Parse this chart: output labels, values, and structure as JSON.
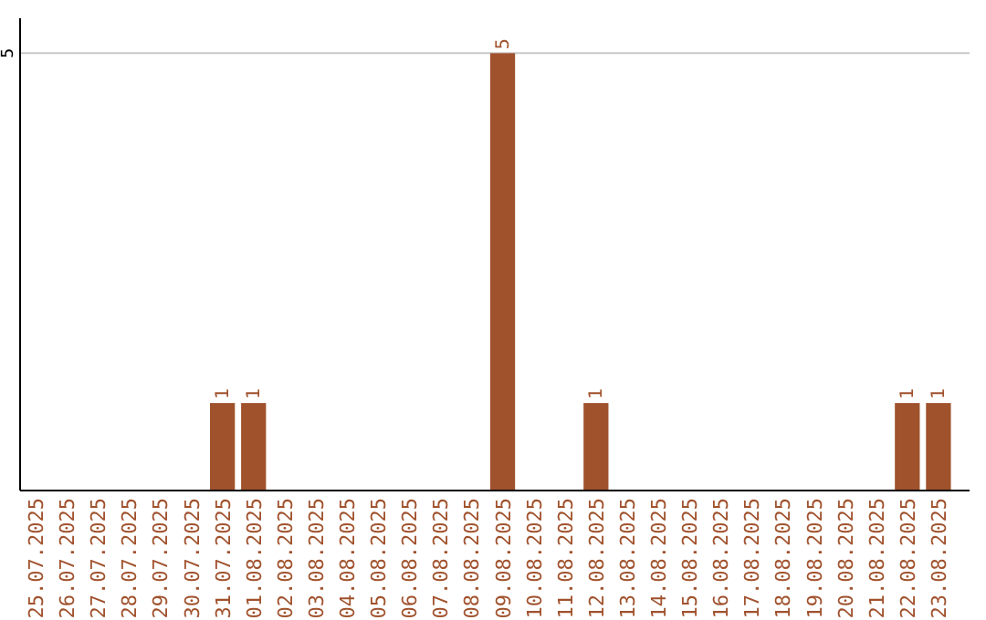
{
  "chart_data": {
    "type": "bar",
    "categories": [
      "25.07.2025",
      "26.07.2025",
      "27.07.2025",
      "28.07.2025",
      "29.07.2025",
      "30.07.2025",
      "31.07.2025",
      "01.08.2025",
      "02.08.2025",
      "03.08.2025",
      "04.08.2025",
      "05.08.2025",
      "06.08.2025",
      "07.08.2025",
      "08.08.2025",
      "09.08.2025",
      "10.08.2025",
      "11.08.2025",
      "12.08.2025",
      "13.08.2025",
      "14.08.2025",
      "15.08.2025",
      "16.08.2025",
      "17.08.2025",
      "18.08.2025",
      "19.08.2025",
      "20.08.2025",
      "21.08.2025",
      "22.08.2025",
      "23.08.2025"
    ],
    "values": [
      0,
      0,
      0,
      0,
      0,
      0,
      1,
      1,
      0,
      0,
      0,
      0,
      0,
      0,
      0,
      5,
      0,
      0,
      1,
      0,
      0,
      0,
      0,
      0,
      0,
      0,
      0,
      0,
      1,
      1
    ],
    "value_labels": [
      null,
      null,
      null,
      null,
      null,
      null,
      "1",
      "1",
      null,
      null,
      null,
      null,
      null,
      null,
      null,
      "5",
      null,
      null,
      "1",
      null,
      null,
      null,
      null,
      null,
      null,
      null,
      null,
      null,
      "1",
      "1"
    ],
    "color": "#a0522d",
    "ylim": [
      0,
      5.4
    ],
    "yticks": [
      5
    ],
    "grid": "y"
  }
}
